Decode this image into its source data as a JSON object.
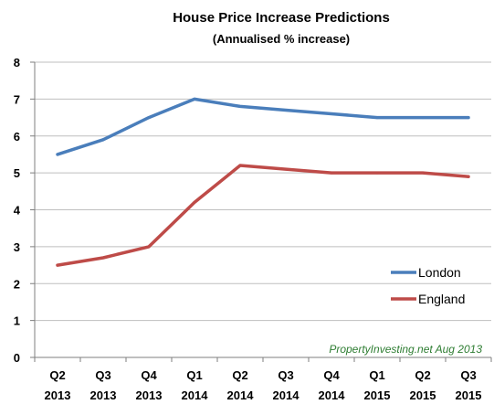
{
  "chart_data": {
    "type": "line",
    "title": "House Price Increase Predictions",
    "subtitle": "(Annualised % increase)",
    "categories": [
      [
        "Q2",
        "2013"
      ],
      [
        "Q3",
        "2013"
      ],
      [
        "Q4",
        "2013"
      ],
      [
        "Q1",
        "2014"
      ],
      [
        "Q2",
        "2014"
      ],
      [
        "Q3",
        "2014"
      ],
      [
        "Q4",
        "2014"
      ],
      [
        "Q1",
        "2015"
      ],
      [
        "Q2",
        "2015"
      ],
      [
        "Q3",
        "2015"
      ]
    ],
    "series": [
      {
        "name": "London",
        "color": "#4a7ebb",
        "values": [
          5.5,
          5.9,
          6.5,
          7.0,
          6.8,
          6.7,
          6.6,
          6.5,
          6.5,
          6.5
        ]
      },
      {
        "name": "England",
        "color": "#be4b48",
        "values": [
          2.5,
          2.7,
          3.0,
          4.2,
          5.2,
          5.1,
          5.0,
          5.0,
          5.0,
          4.9
        ]
      }
    ],
    "ylim": [
      0,
      8
    ],
    "yticks": [
      "0",
      "1",
      "2",
      "3",
      "4",
      "5",
      "6",
      "7",
      "8"
    ],
    "grid": true,
    "legend_position": "bottom-right",
    "annotation": "PropertyInvesting.net Aug 2013"
  }
}
